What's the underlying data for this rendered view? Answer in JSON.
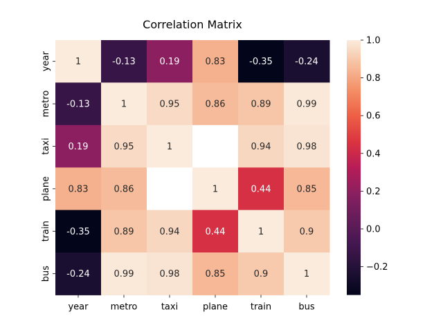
{
  "chart_data": {
    "type": "heatmap",
    "title": "Correlation Matrix",
    "xlabel": "",
    "ylabel": "",
    "x_labels": [
      "year",
      "metro",
      "taxi",
      "plane",
      "train",
      "bus"
    ],
    "y_labels": [
      "year",
      "metro",
      "taxi",
      "plane",
      "train",
      "bus"
    ],
    "values": [
      [
        1,
        -0.13,
        0.19,
        0.83,
        -0.35,
        -0.24
      ],
      [
        -0.13,
        1,
        0.95,
        0.86,
        0.89,
        0.99
      ],
      [
        0.19,
        0.95,
        1,
        null,
        0.94,
        0.98
      ],
      [
        0.83,
        0.86,
        null,
        1,
        0.44,
        0.85
      ],
      [
        -0.35,
        0.89,
        0.94,
        0.44,
        1,
        0.9
      ],
      [
        -0.24,
        0.99,
        0.98,
        0.85,
        0.9,
        1
      ]
    ],
    "annotations": [
      [
        "1",
        "-0.13",
        "0.19",
        "0.83",
        "-0.35",
        "-0.24"
      ],
      [
        "-0.13",
        "1",
        "0.95",
        "0.86",
        "0.89",
        "0.99"
      ],
      [
        "0.19",
        "0.95",
        "1",
        "",
        "0.94",
        "0.98"
      ],
      [
        "0.83",
        "0.86",
        "",
        "1",
        "0.44",
        "0.85"
      ],
      [
        "-0.35",
        "0.89",
        "0.94",
        "0.44",
        "1",
        "0.9"
      ],
      [
        "-0.24",
        "0.99",
        "0.98",
        "0.85",
        "0.9",
        "1"
      ]
    ],
    "colorbar": {
      "colormap": "rocket",
      "vmin": -0.35,
      "vmax": 1.0,
      "ticks": [
        1.0,
        0.8,
        0.6,
        0.4,
        0.2,
        0.0,
        -0.2
      ],
      "tick_labels": [
        "1.0",
        "0.8",
        "0.6",
        "0.4",
        "0.2",
        "0.0",
        "−0.2"
      ]
    },
    "grid": false,
    "legend": "colorbar-right"
  }
}
